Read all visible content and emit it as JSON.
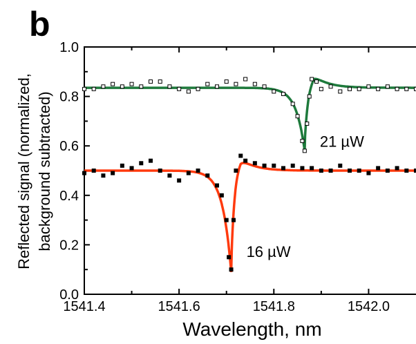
{
  "chart_data": {
    "type": "scatter",
    "panel_label": "b",
    "xlabel": "Wavelength, nm",
    "ylabel_lines": [
      "Reflected signal (normalized,",
      "background subtracted)"
    ],
    "xlim": [
      1541.4,
      1542.1
    ],
    "ylim": [
      0.0,
      1.0
    ],
    "xticks": [
      1541.4,
      1541.6,
      1541.8,
      1542.0
    ],
    "xtick_labels": [
      "1541.4",
      "1541.6",
      "1541.8",
      "1542.0"
    ],
    "yticks": [
      0.0,
      0.2,
      0.4,
      0.6,
      0.8,
      1.0
    ],
    "ytick_labels": [
      "0.0",
      "0.2",
      "0.4",
      "0.6",
      "0.8",
      "1.0"
    ],
    "grid": false,
    "series": [
      {
        "label": "21 µW",
        "marker": "open square",
        "fit_color": "#1e7a3c",
        "baseline": 0.835,
        "dip_center": 1541.865,
        "dip_min": 0.58,
        "points": [
          [
            1541.4,
            0.83
          ],
          [
            1541.42,
            0.83
          ],
          [
            1541.44,
            0.84
          ],
          [
            1541.46,
            0.85
          ],
          [
            1541.48,
            0.84
          ],
          [
            1541.5,
            0.85
          ],
          [
            1541.52,
            0.84
          ],
          [
            1541.54,
            0.86
          ],
          [
            1541.56,
            0.86
          ],
          [
            1541.58,
            0.84
          ],
          [
            1541.6,
            0.83
          ],
          [
            1541.62,
            0.82
          ],
          [
            1541.64,
            0.83
          ],
          [
            1541.66,
            0.85
          ],
          [
            1541.68,
            0.84
          ],
          [
            1541.7,
            0.86
          ],
          [
            1541.72,
            0.85
          ],
          [
            1541.74,
            0.87
          ],
          [
            1541.76,
            0.85
          ],
          [
            1541.78,
            0.84
          ],
          [
            1541.8,
            0.82
          ],
          [
            1541.82,
            0.81
          ],
          [
            1541.84,
            0.77
          ],
          [
            1541.85,
            0.72
          ],
          [
            1541.86,
            0.62
          ],
          [
            1541.865,
            0.58
          ],
          [
            1541.87,
            0.69
          ],
          [
            1541.875,
            0.8
          ],
          [
            1541.88,
            0.87
          ],
          [
            1541.89,
            0.86
          ],
          [
            1541.9,
            0.83
          ],
          [
            1541.92,
            0.84
          ],
          [
            1541.94,
            0.82
          ],
          [
            1541.96,
            0.83
          ],
          [
            1541.98,
            0.83
          ],
          [
            1542.0,
            0.84
          ],
          [
            1542.02,
            0.83
          ],
          [
            1542.04,
            0.84
          ],
          [
            1542.06,
            0.83
          ],
          [
            1542.08,
            0.83
          ],
          [
            1542.1,
            0.83
          ]
        ]
      },
      {
        "label": "16 µW",
        "marker": "filled square",
        "fit_color": "#ff3a0e",
        "baseline": 0.5,
        "dip_center": 1541.71,
        "dip_min": 0.09,
        "points": [
          [
            1541.4,
            0.49
          ],
          [
            1541.42,
            0.5
          ],
          [
            1541.44,
            0.48
          ],
          [
            1541.46,
            0.49
          ],
          [
            1541.48,
            0.52
          ],
          [
            1541.5,
            0.51
          ],
          [
            1541.52,
            0.53
          ],
          [
            1541.54,
            0.54
          ],
          [
            1541.56,
            0.5
          ],
          [
            1541.58,
            0.48
          ],
          [
            1541.6,
            0.46
          ],
          [
            1541.62,
            0.49
          ],
          [
            1541.64,
            0.5
          ],
          [
            1541.66,
            0.48
          ],
          [
            1541.68,
            0.44
          ],
          [
            1541.69,
            0.4
          ],
          [
            1541.7,
            0.3
          ],
          [
            1541.705,
            0.15
          ],
          [
            1541.71,
            0.1
          ],
          [
            1541.715,
            0.3
          ],
          [
            1541.72,
            0.5
          ],
          [
            1541.73,
            0.56
          ],
          [
            1541.74,
            0.54
          ],
          [
            1541.76,
            0.53
          ],
          [
            1541.78,
            0.52
          ],
          [
            1541.8,
            0.52
          ],
          [
            1541.82,
            0.51
          ],
          [
            1541.84,
            0.52
          ],
          [
            1541.86,
            0.51
          ],
          [
            1541.88,
            0.51
          ],
          [
            1541.9,
            0.5
          ],
          [
            1541.92,
            0.5
          ],
          [
            1541.94,
            0.52
          ],
          [
            1541.96,
            0.5
          ],
          [
            1541.98,
            0.5
          ],
          [
            1542.0,
            0.49
          ],
          [
            1542.02,
            0.51
          ],
          [
            1542.04,
            0.5
          ],
          [
            1542.06,
            0.51
          ],
          [
            1542.08,
            0.5
          ],
          [
            1542.1,
            0.5
          ]
        ]
      }
    ]
  }
}
